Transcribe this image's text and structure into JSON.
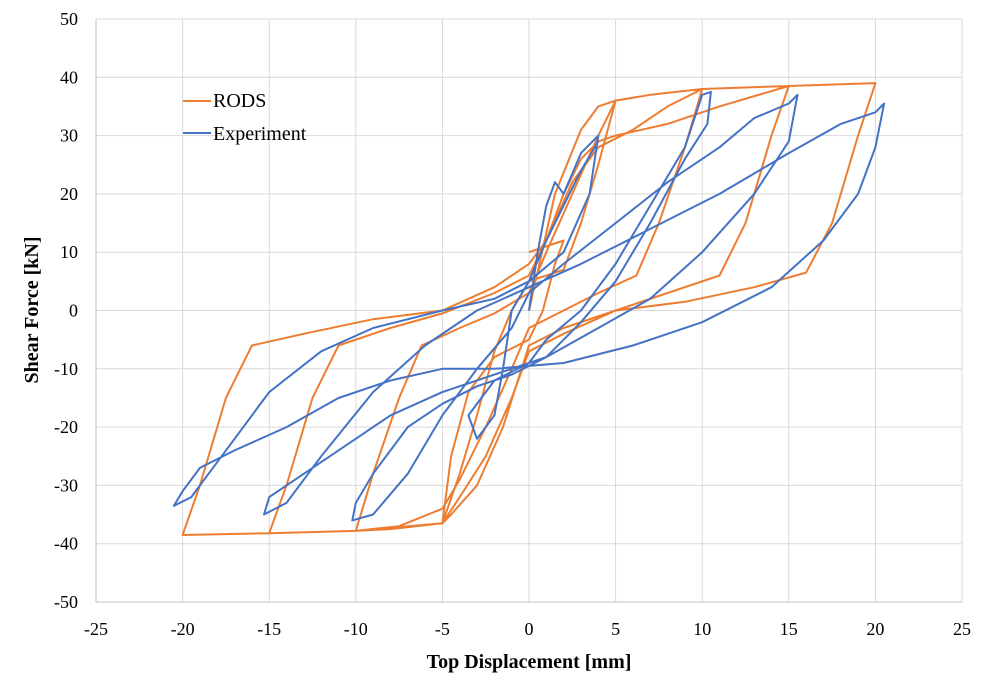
{
  "chart_data": {
    "type": "line",
    "xlabel": "Top Displacement [mm]",
    "ylabel": "Shear Force [kN]",
    "xlim": [
      -25,
      25
    ],
    "ylim": [
      -50,
      50
    ],
    "xticks": [
      -25,
      -20,
      -15,
      -10,
      -5,
      0,
      5,
      10,
      15,
      20,
      25
    ],
    "yticks": [
      -50,
      -40,
      -30,
      -20,
      -10,
      0,
      10,
      20,
      30,
      40,
      50
    ],
    "grid": true,
    "legend_position": "top-left",
    "series": [
      {
        "name": "RODS",
        "color": "#ED7D31",
        "points": [
          [
            0,
            0
          ],
          [
            1.5,
            20
          ],
          [
            3,
            31
          ],
          [
            4,
            35
          ],
          [
            5,
            36
          ],
          [
            7,
            37
          ],
          [
            10,
            38
          ],
          [
            15,
            38.5
          ],
          [
            20,
            39
          ],
          [
            19,
            30
          ],
          [
            17.5,
            15
          ],
          [
            16,
            6.5
          ],
          [
            13,
            4
          ],
          [
            9,
            1.5
          ],
          [
            5,
            0
          ],
          [
            2,
            -3
          ],
          [
            0,
            -6
          ],
          [
            -1.5,
            -20
          ],
          [
            -3,
            -30
          ],
          [
            -4.5,
            -35
          ],
          [
            -5,
            -36.5
          ],
          [
            -8,
            -37.5
          ],
          [
            -10,
            -37.8
          ],
          [
            -15,
            -38.2
          ],
          [
            -20,
            -38.5
          ],
          [
            -19,
            -30
          ],
          [
            -17.5,
            -15
          ],
          [
            -16,
            -6
          ],
          [
            -13,
            -4
          ],
          [
            -9,
            -1.5
          ],
          [
            -5,
            0
          ],
          [
            -2,
            4
          ],
          [
            0,
            8
          ],
          [
            1,
            12
          ],
          [
            2,
            20
          ],
          [
            3,
            26
          ],
          [
            4,
            29
          ],
          [
            5,
            30
          ],
          [
            8,
            32
          ],
          [
            11,
            35
          ],
          [
            15,
            38.5
          ],
          [
            14,
            30
          ],
          [
            12.5,
            15
          ],
          [
            11,
            6
          ],
          [
            8,
            3
          ],
          [
            5,
            0
          ],
          [
            2,
            -4
          ],
          [
            0,
            -7
          ],
          [
            -1,
            -15
          ],
          [
            -2.5,
            -25
          ],
          [
            -4,
            -32
          ],
          [
            -5,
            -36.5
          ],
          [
            -10,
            -37.8
          ],
          [
            -15,
            -38.2
          ],
          [
            -14,
            -30
          ],
          [
            -12.5,
            -15
          ],
          [
            -11,
            -6
          ],
          [
            -8,
            -3
          ],
          [
            -5,
            -0.5
          ],
          [
            -2,
            3
          ],
          [
            0,
            6
          ],
          [
            1,
            12
          ],
          [
            2.5,
            22
          ],
          [
            4,
            28
          ],
          [
            6,
            31
          ],
          [
            8,
            35
          ],
          [
            10,
            38
          ],
          [
            9,
            28
          ],
          [
            7.5,
            15
          ],
          [
            6.2,
            6
          ],
          [
            4,
            3
          ],
          [
            2,
            0
          ],
          [
            0,
            -3
          ],
          [
            -1,
            -10
          ],
          [
            -2.5,
            -20
          ],
          [
            -4,
            -29
          ],
          [
            -5,
            -34
          ],
          [
            -7.5,
            -37
          ],
          [
            -10,
            -37.8
          ],
          [
            -9,
            -28
          ],
          [
            -7.5,
            -15
          ],
          [
            -6.2,
            -6
          ],
          [
            -4,
            -3
          ],
          [
            -2,
            -0.5
          ],
          [
            0,
            3
          ],
          [
            1,
            10
          ],
          [
            2.5,
            20
          ],
          [
            4,
            30
          ],
          [
            5,
            36
          ],
          [
            4,
            25
          ],
          [
            3,
            15
          ],
          [
            2,
            7
          ],
          [
            0,
            5
          ],
          [
            -1,
            0
          ],
          [
            -2,
            -7
          ],
          [
            -3,
            -18
          ],
          [
            -4,
            -28
          ],
          [
            -5,
            -36.5
          ],
          [
            -4.5,
            -25
          ],
          [
            -3.5,
            -14
          ],
          [
            -2,
            -8
          ],
          [
            0,
            -5
          ],
          [
            0.8,
            0
          ],
          [
            1.5,
            8
          ],
          [
            2,
            12
          ],
          [
            0,
            10
          ]
        ]
      },
      {
        "name": "Experiment",
        "color": "#4472C4",
        "points": [
          [
            0,
            0
          ],
          [
            0.5,
            10
          ],
          [
            1,
            18
          ],
          [
            1.5,
            22
          ],
          [
            2,
            20
          ],
          [
            3,
            27
          ],
          [
            4,
            30
          ],
          [
            3.5,
            20
          ],
          [
            2,
            10
          ],
          [
            0,
            5
          ],
          [
            -1,
            0
          ],
          [
            -1.5,
            -10
          ],
          [
            -2,
            -18
          ],
          [
            -3,
            -22
          ],
          [
            -3.5,
            -18
          ],
          [
            -2,
            -12
          ],
          [
            0,
            -9
          ],
          [
            1,
            -5
          ],
          [
            3,
            0
          ],
          [
            5,
            8
          ],
          [
            7,
            18
          ],
          [
            9,
            28
          ],
          [
            10,
            37
          ],
          [
            10.5,
            37.5
          ],
          [
            10.3,
            32
          ],
          [
            9,
            26
          ],
          [
            7,
            15
          ],
          [
            5,
            5
          ],
          [
            3,
            -2
          ],
          [
            1,
            -8
          ],
          [
            -1,
            -11
          ],
          [
            -3,
            -13
          ],
          [
            -5,
            -16
          ],
          [
            -7,
            -20
          ],
          [
            -9,
            -28
          ],
          [
            -10,
            -33
          ],
          [
            -10.2,
            -36
          ],
          [
            -9,
            -35
          ],
          [
            -7,
            -28
          ],
          [
            -5,
            -18
          ],
          [
            -3,
            -10
          ],
          [
            -1,
            -3
          ],
          [
            0,
            3
          ],
          [
            2,
            8
          ],
          [
            5,
            15
          ],
          [
            8,
            22
          ],
          [
            11,
            28
          ],
          [
            13,
            33
          ],
          [
            15,
            35.5
          ],
          [
            15.5,
            37
          ],
          [
            15,
            29
          ],
          [
            13,
            20
          ],
          [
            10,
            10
          ],
          [
            7,
            2
          ],
          [
            4,
            -3
          ],
          [
            1,
            -8
          ],
          [
            -2,
            -11
          ],
          [
            -5,
            -14
          ],
          [
            -8,
            -18
          ],
          [
            -11,
            -24
          ],
          [
            -14,
            -30
          ],
          [
            -15,
            -32
          ],
          [
            -15.3,
            -35
          ],
          [
            -14,
            -33
          ],
          [
            -12,
            -25
          ],
          [
            -9,
            -14
          ],
          [
            -6,
            -6
          ],
          [
            -3,
            0
          ],
          [
            0,
            4
          ],
          [
            3,
            8
          ],
          [
            7,
            14
          ],
          [
            11,
            20
          ],
          [
            15,
            27
          ],
          [
            18,
            32
          ],
          [
            20,
            34
          ],
          [
            20.5,
            35.5
          ],
          [
            20,
            28
          ],
          [
            19,
            20
          ],
          [
            17,
            12
          ],
          [
            14,
            4
          ],
          [
            10,
            -2
          ],
          [
            6,
            -6
          ],
          [
            2,
            -9
          ],
          [
            -2,
            -10
          ],
          [
            -5,
            -10
          ],
          [
            -8,
            -12
          ],
          [
            -11,
            -15
          ],
          [
            -14,
            -20
          ],
          [
            -17,
            -24
          ],
          [
            -19,
            -27
          ],
          [
            -20,
            -31
          ],
          [
            -20.5,
            -33.5
          ],
          [
            -19.5,
            -32
          ],
          [
            -18.5,
            -28
          ],
          [
            -17,
            -22
          ],
          [
            -15,
            -14
          ],
          [
            -12,
            -7
          ],
          [
            -9,
            -3
          ],
          [
            -5,
            0
          ],
          [
            -2,
            2
          ],
          [
            0,
            5
          ],
          [
            1,
            12
          ],
          [
            2,
            18
          ],
          [
            3,
            24
          ],
          [
            4,
            29
          ]
        ]
      }
    ]
  }
}
